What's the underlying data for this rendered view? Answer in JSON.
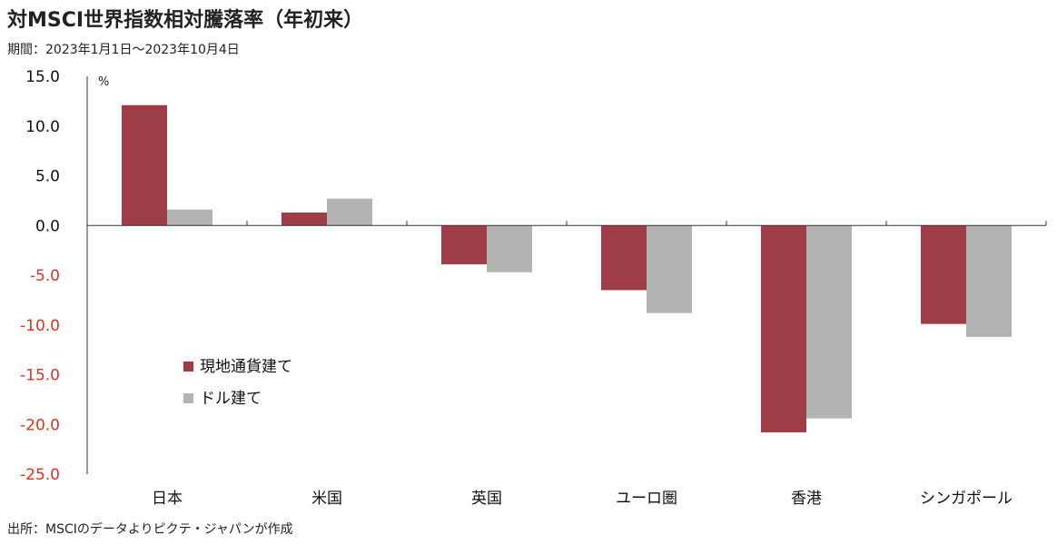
{
  "title": "対MSCI世界指数相対騰落率（年初来）",
  "subtitle": "期間：2023年1月1日～2023年10月4日",
  "source": "出所：MSCIのデータよりピクテ・ジャパンが作成",
  "chart_data": {
    "type": "bar",
    "unit": "%",
    "categories": [
      "日本",
      "米国",
      "英国",
      "ユーロ圏",
      "香港",
      "シンガポール"
    ],
    "series": [
      {
        "name": "現地通貨建て",
        "color": "#9e3d45",
        "values": [
          12.1,
          1.3,
          -3.9,
          -6.5,
          -20.8,
          -9.9
        ]
      },
      {
        "name": "ドル建て",
        "color": "#b3b3b3",
        "values": [
          1.6,
          2.7,
          -4.7,
          -8.8,
          -19.4,
          -11.2
        ]
      }
    ],
    "ylim": [
      -25,
      15
    ],
    "yticks": [
      "15.0",
      "10.0",
      "5.0",
      "0.0",
      "-5.0",
      "-10.0",
      "-15.0",
      "-20.0",
      "-25.0"
    ],
    "tick_colors": {
      "positive": "#111111",
      "negative": "#e03020"
    },
    "grid": false,
    "legend": "center-left"
  }
}
